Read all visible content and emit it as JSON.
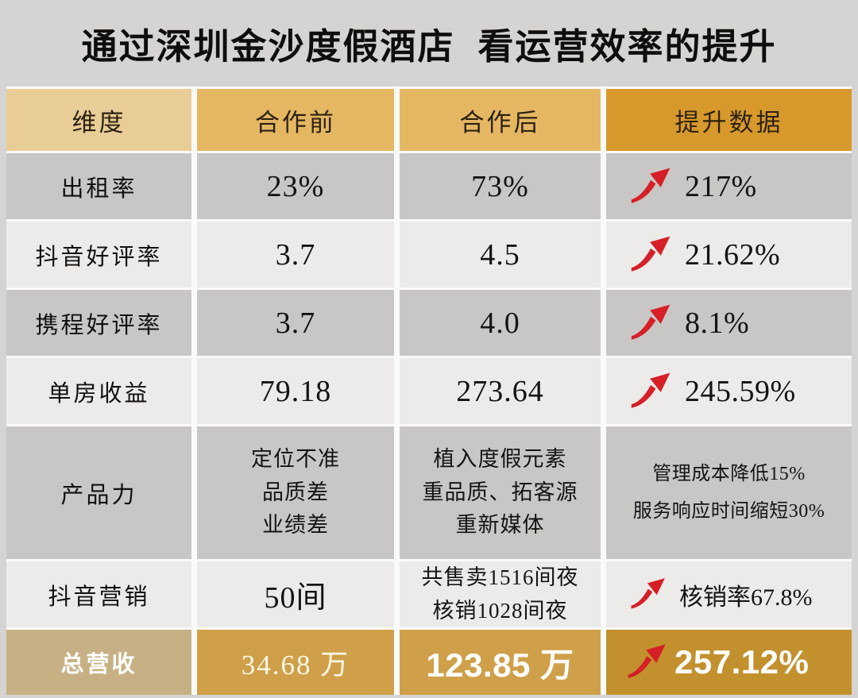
{
  "title": "通过深圳金沙度假酒店  看运营效率的提升",
  "table": {
    "headers": [
      "维度",
      "合作前",
      "合作后",
      "提升数据"
    ],
    "rows": [
      {
        "dimension": "出租率",
        "before": "23%",
        "after": "73%",
        "improvement": "217%",
        "arrow": true
      },
      {
        "dimension": "抖音好评率",
        "before": "3.7",
        "after": "4.5",
        "improvement": "21.62%",
        "arrow": true
      },
      {
        "dimension": "携程好评率",
        "before": "3.7",
        "after": "4.0",
        "improvement": "8.1%",
        "arrow": true
      },
      {
        "dimension": "单房收益",
        "before": "79.18",
        "after": "273.64",
        "improvement": "245.59%",
        "arrow": true
      },
      {
        "dimension": "产品力",
        "before": [
          "定位不准",
          "品质差",
          "业绩差"
        ],
        "after": [
          "植入度假元素",
          "重品质、拓客源",
          "重新媒体"
        ],
        "improvement": [
          "管理成本降低15%",
          "服务响应时间缩短30%"
        ],
        "arrow": false
      },
      {
        "dimension": "抖音营销",
        "before": "50间",
        "after": [
          "共售卖1516间夜",
          "核销1028间夜"
        ],
        "improvement": "核销率67.8%",
        "arrow": true
      }
    ],
    "total": {
      "dimension": "总营收",
      "before": "34.68 万",
      "after": "123.85 万",
      "improvement": "257.12%",
      "arrow": true
    }
  },
  "icons": {
    "trend_arrow": "red-curved-up-right-arrow"
  },
  "colors": {
    "page_bg": "#d6d4d2",
    "gap": "#fafaf8",
    "header_dim": "#e8cd96",
    "header_mid": "#e5b763",
    "header_improve": "#d8992c",
    "row_dark": "#c9c7c5",
    "row_light": "#edebe9",
    "total_dim": "#c7b184",
    "total_mid": "#cfa049",
    "total_improve": "#c2912d",
    "arrow_red": "#d61f26",
    "text_white": "#ffffff"
  },
  "chart_data": {
    "type": "table",
    "title": "通过深圳金沙度假酒店  看运营效率的提升",
    "columns": [
      "维度",
      "合作前",
      "合作后",
      "提升数据"
    ],
    "rows": [
      [
        "出租率",
        "23%",
        "73%",
        "↑217%"
      ],
      [
        "抖音好评率",
        "3.7",
        "4.5",
        "↑21.62%"
      ],
      [
        "携程好评率",
        "3.7",
        "4.0",
        "↑8.1%"
      ],
      [
        "单房收益",
        "79.18",
        "273.64",
        "↑245.59%"
      ],
      [
        "产品力",
        "定位不准 品质差 业绩差",
        "植入度假元素 重品质、拓客源 重新媒体",
        "管理成本降低15% 服务响应时间缩短30%"
      ],
      [
        "抖音营销",
        "50间",
        "共售卖1516间夜 核销1028间夜",
        "↑核销率67.8%"
      ],
      [
        "总营收",
        "34.68 万",
        "123.85 万",
        "↑257.12%"
      ]
    ]
  }
}
